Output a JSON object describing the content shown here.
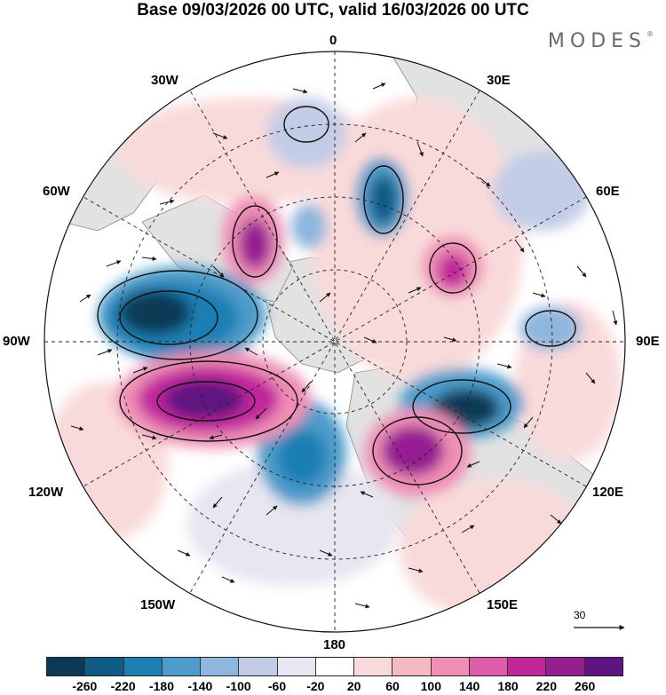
{
  "header": {
    "title": "Base 09/03/2026 00 UTC, valid 16/03/2026 00 UTC",
    "logo": "MODES",
    "logo_mark": "®"
  },
  "map": {
    "projection": "polar stereographic (north pole)",
    "longitude_labels": {
      "lon_0": "0",
      "lon_30e": "30E",
      "lon_60e": "60E",
      "lon_90e": "90E",
      "lon_120e": "120E",
      "lon_150e": "150E",
      "lon_180": "180",
      "lon_150w": "150W",
      "lon_120w": "120W",
      "lon_90w": "90W",
      "lon_60w": "60W",
      "lon_30w": "30W"
    },
    "reference_vector": {
      "label": "30"
    }
  },
  "colorbar": {
    "colors": [
      "#0b3a56",
      "#115c85",
      "#1f7fb3",
      "#4d9ccb",
      "#8fb6dd",
      "#c3cce6",
      "#e7e6f1",
      "#ffffff",
      "#f9dada",
      "#f5b9c3",
      "#ef8fb5",
      "#de5ca9",
      "#c1279b",
      "#951f91",
      "#5e1380"
    ],
    "tick_labels": [
      "-260",
      "-220",
      "-180",
      "-140",
      "-100",
      "-60",
      "-20",
      "20",
      "60",
      "100",
      "140",
      "180",
      "220",
      "260"
    ]
  },
  "legend": {
    "colors": {
      "land": "#e2e2e2",
      "coast": "#888888",
      "grid": "#222222"
    }
  }
}
